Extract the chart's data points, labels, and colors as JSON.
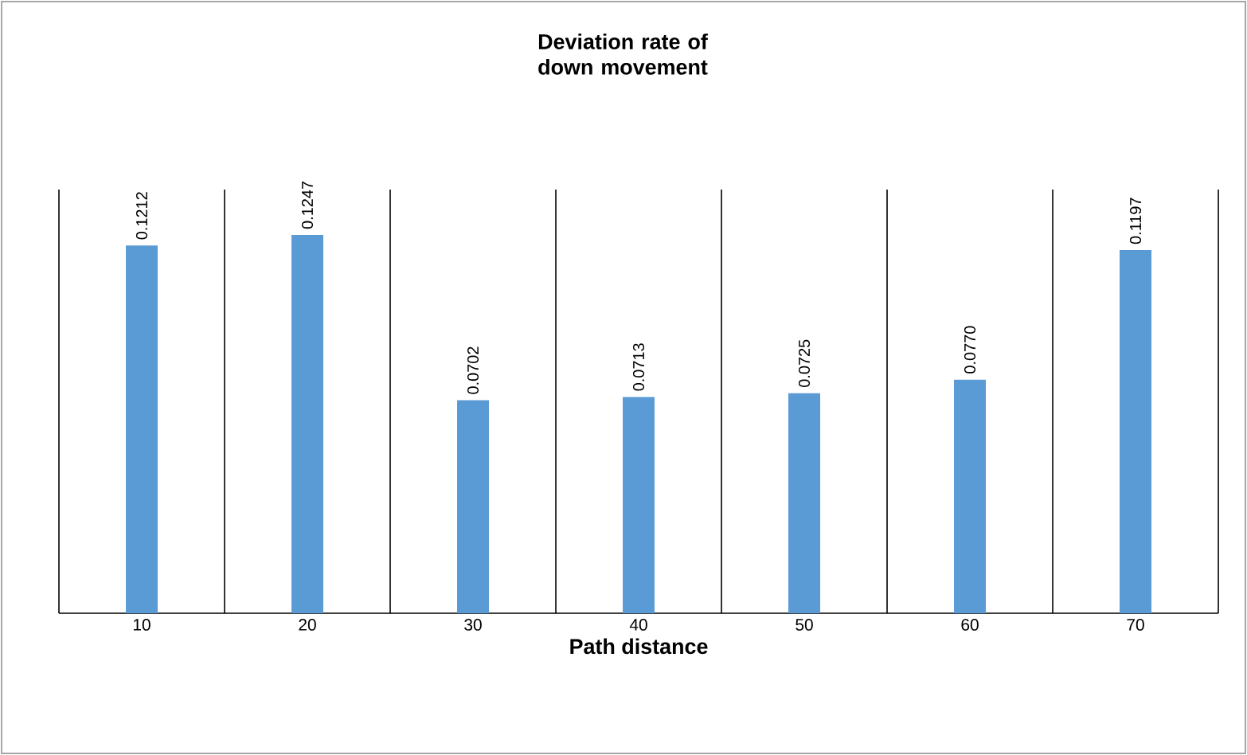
{
  "chart_data": {
    "type": "bar",
    "title": "Deviation rate of down movement",
    "xlabel": "Path distance",
    "categories": [
      "10",
      "20",
      "30",
      "40",
      "50",
      "60",
      "70"
    ],
    "values": [
      0.1212,
      0.1247,
      0.0702,
      0.0713,
      0.0725,
      0.077,
      0.1197
    ],
    "value_labels": [
      "0.1212",
      "0.1247",
      "0.0702",
      "0.0713",
      "0.0725",
      "0.0770",
      "0.1197"
    ],
    "color": "#5b9bd5",
    "grid": "x"
  }
}
